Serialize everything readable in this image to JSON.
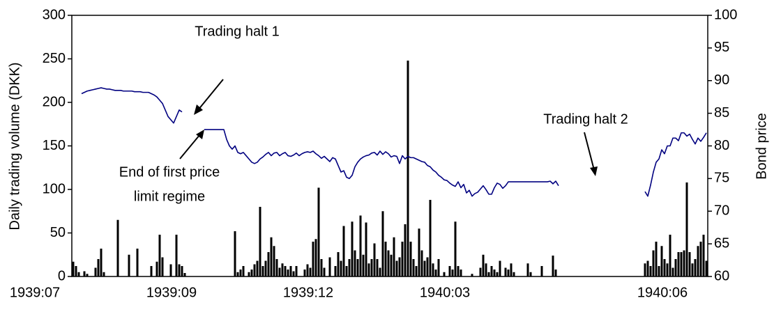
{
  "chart_data": {
    "type": "combo",
    "y_label": "Daily trading volume (DKK)",
    "y2_label": "Bond price",
    "annotations": [
      "Trading halt 1",
      "Trading halt 2",
      "End of first price",
      "limit regime"
    ],
    "ylim": [
      0,
      300
    ],
    "yticks": [
      0,
      50,
      100,
      150,
      200,
      250,
      300
    ],
    "y2lim": [
      60,
      100
    ],
    "y2ticks": [
      60,
      65,
      70,
      75,
      80,
      85,
      90,
      95,
      100
    ],
    "categories": [
      "1939:07",
      null,
      null,
      null,
      null,
      null,
      null,
      null,
      null,
      null,
      null,
      null,
      null,
      null,
      null,
      null,
      null,
      null,
      null,
      null,
      null,
      null,
      null,
      null,
      null,
      null,
      null,
      null,
      null,
      null,
      null,
      null,
      null,
      null,
      null,
      null,
      null,
      null,
      null,
      null,
      null,
      null,
      null,
      null,
      null,
      null,
      null,
      null,
      null,
      "1939:09",
      null,
      null,
      null,
      null,
      null,
      null,
      null,
      null,
      null,
      null,
      null,
      null,
      null,
      null,
      null,
      null,
      null,
      null,
      null,
      null,
      null,
      null,
      null,
      null,
      null,
      null,
      null,
      null,
      null,
      null,
      null,
      null,
      null,
      null,
      null,
      null,
      null,
      null,
      null,
      null,
      null,
      null,
      null,
      null,
      null,
      null,
      null,
      null,
      "1939:12",
      null,
      null,
      null,
      null,
      null,
      null,
      null,
      null,
      null,
      null,
      null,
      null,
      null,
      null,
      null,
      null,
      null,
      null,
      null,
      null,
      null,
      null,
      null,
      null,
      null,
      null,
      null,
      null,
      null,
      null,
      null,
      null,
      null,
      null,
      null,
      null,
      null,
      null,
      null,
      null,
      null,
      null,
      null,
      null,
      null,
      null,
      null,
      null,
      "1940:03",
      null,
      null,
      null,
      null,
      null,
      null,
      null,
      null,
      null,
      null,
      null,
      null,
      null,
      null,
      null,
      null,
      null,
      null,
      null,
      null,
      null,
      null,
      null,
      null,
      null,
      null,
      null,
      null,
      null,
      null,
      null,
      null,
      null,
      null,
      null,
      null,
      null,
      null,
      null,
      null,
      null,
      null,
      null,
      null,
      null,
      null,
      null,
      null,
      null,
      null,
      null,
      null,
      null,
      null,
      null,
      null,
      null,
      null,
      null,
      null,
      null,
      null,
      null,
      null,
      null,
      null,
      null,
      null,
      null,
      null,
      null,
      null,
      null,
      null,
      null,
      null,
      null,
      "1940:06",
      null,
      null
    ],
    "series": [
      {
        "type": "bar",
        "color": "#000000",
        "values": [
          17,
          12,
          5,
          null,
          6,
          3,
          null,
          null,
          10,
          20,
          32,
          5,
          null,
          null,
          null,
          null,
          65,
          null,
          null,
          null,
          25,
          null,
          null,
          32,
          null,
          null,
          null,
          null,
          12,
          null,
          17,
          48,
          22,
          null,
          null,
          14,
          null,
          48,
          14,
          12,
          4,
          null,
          null,
          null,
          null,
          null,
          null,
          null,
          null,
          null,
          null,
          null,
          null,
          null,
          null,
          null,
          null,
          null,
          52,
          5,
          8,
          12,
          null,
          5,
          8,
          14,
          18,
          80,
          12,
          18,
          28,
          45,
          35,
          20,
          10,
          15,
          12,
          8,
          12,
          6,
          12,
          null,
          null,
          8,
          14,
          10,
          40,
          43,
          102,
          20,
          10,
          null,
          22,
          null,
          12,
          28,
          18,
          58,
          12,
          20,
          63,
          30,
          20,
          70,
          25,
          62,
          15,
          20,
          38,
          20,
          10,
          75,
          40,
          30,
          25,
          45,
          18,
          22,
          40,
          60,
          248,
          40,
          20,
          12,
          55,
          30,
          18,
          22,
          88,
          15,
          8,
          20,
          null,
          5,
          null,
          12,
          8,
          63,
          12,
          8,
          null,
          null,
          null,
          3,
          null,
          null,
          10,
          25,
          15,
          5,
          12,
          8,
          5,
          18,
          null,
          10,
          8,
          15,
          5,
          null,
          null,
          null,
          null,
          15,
          5,
          null,
          null,
          null,
          12,
          null,
          null,
          null,
          24,
          8,
          null,
          null,
          null,
          null,
          null,
          null,
          null,
          null,
          null,
          null,
          null,
          null,
          null,
          null,
          null,
          null,
          null,
          null,
          null,
          null,
          null,
          null,
          null,
          null,
          null,
          null,
          null,
          null,
          null,
          null,
          null,
          15,
          18,
          12,
          30,
          40,
          12,
          35,
          20,
          15,
          48,
          10,
          20,
          28,
          28,
          30,
          108,
          28,
          15,
          20,
          35,
          40,
          48,
          18
        ]
      },
      {
        "type": "line",
        "axis": "y2",
        "color": "#000080",
        "values": [
          null,
          null,
          null,
          88,
          88.2,
          88.4,
          88.5,
          88.6,
          88.7,
          88.8,
          88.9,
          88.8,
          88.7,
          88.7,
          88.6,
          88.5,
          88.5,
          88.5,
          88.4,
          88.4,
          88.4,
          88.4,
          88.3,
          88.3,
          88.3,
          88.2,
          88.2,
          88.2,
          88.0,
          87.8,
          87.5,
          87,
          86.5,
          85.5,
          84.5,
          84,
          83.5,
          84.5,
          85.5,
          85.2,
          null,
          null,
          null,
          null,
          null,
          null,
          null,
          82.5,
          82.5,
          82.5,
          82.5,
          82.5,
          82.5,
          82.5,
          82.5,
          81,
          80,
          79.5,
          80,
          79,
          78.8,
          79,
          78.5,
          78,
          77.5,
          77.3,
          77.5,
          78,
          78.3,
          78.7,
          79,
          78.5,
          78.9,
          79,
          78.5,
          78.8,
          79,
          78.5,
          78.4,
          78.6,
          78.9,
          78.5,
          78.8,
          79,
          79.1,
          79,
          79.2,
          78.8,
          78.5,
          78.1,
          78.4,
          78,
          77.6,
          78.2,
          78,
          77,
          76,
          76.2,
          75.2,
          75,
          75.5,
          76.8,
          77.5,
          78,
          78.3,
          78.5,
          78.6,
          78.9,
          79,
          78.6,
          79.2,
          78.7,
          79.1,
          78.8,
          78.3,
          78.5,
          78.4,
          77.3,
          78.5,
          78,
          78.4,
          78.2,
          78.2,
          78,
          77.8,
          77.6,
          77.5,
          77,
          76.8,
          76.3,
          76,
          75.5,
          75.2,
          74.8,
          74.7,
          74.3,
          74,
          73.8,
          74.5,
          73.6,
          74.1,
          72.8,
          73.2,
          72.3,
          72.7,
          72.9,
          73.4,
          73.9,
          73.3,
          72.6,
          72.6,
          73.6,
          74.3,
          74.1,
          73.5,
          73.9,
          74.5,
          74.5,
          74.5,
          74.5,
          74.5,
          74.5,
          74.5,
          74.5,
          74.5,
          74.5,
          74.5,
          74.5,
          74.5,
          74.5,
          74.5,
          74.6,
          74.2,
          74.6,
          73.9,
          null,
          null,
          null,
          null,
          null,
          null,
          null,
          null,
          null,
          null,
          null,
          null,
          null,
          null,
          null,
          null,
          null,
          null,
          null,
          null,
          null,
          null,
          null,
          null,
          null,
          null,
          null,
          null,
          null,
          null,
          73,
          72.3,
          74,
          76,
          77.5,
          78,
          79.4,
          78.8,
          80,
          80,
          81.2,
          81.2,
          80.8,
          82,
          82,
          81.5,
          81.8,
          81,
          80.3,
          81.2,
          80.7,
          81.3,
          82
        ]
      }
    ]
  }
}
